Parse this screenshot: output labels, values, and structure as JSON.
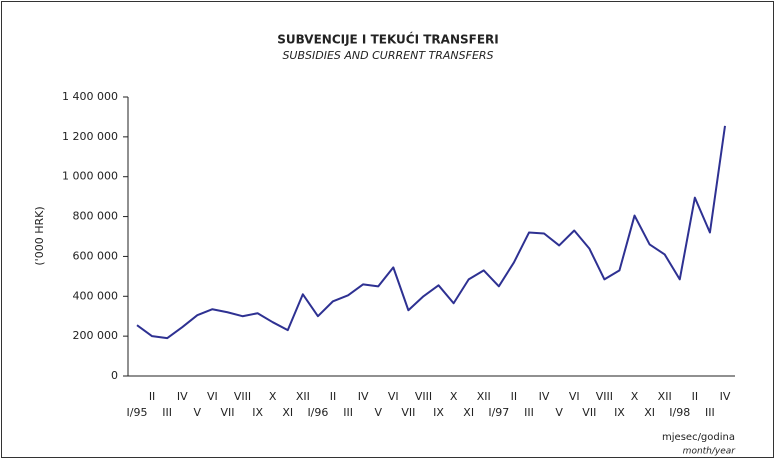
{
  "chart_data": {
    "type": "line",
    "title": "SUBVENCIJE I TEKUĆI TRANSFERI",
    "subtitle": "SUBSIDIES AND CURRENT TRANSFERS",
    "y_label": "('000 HRK)",
    "x_label": "mjesec/godina",
    "x_label_sub": "month/year",
    "categories": [
      "I/95",
      "II",
      "III",
      "IV",
      "V",
      "VI",
      "VII",
      "VIII",
      "IX",
      "X",
      "XI",
      "XII",
      "I/96",
      "II",
      "III",
      "IV",
      "V",
      "VI",
      "VII",
      "VIII",
      "IX",
      "X",
      "XI",
      "XII",
      "I/97",
      "II",
      "III",
      "IV",
      "V",
      "VI",
      "VII",
      "VIII",
      "IX",
      "X",
      "XI",
      "XII",
      "I/98",
      "II",
      "III",
      "IV"
    ],
    "series": [
      {
        "name": "Subvencije i tekući transferi",
        "color": "#2e3192",
        "values": [
          255000,
          200000,
          190000,
          245000,
          305000,
          335000,
          320000,
          300000,
          315000,
          270000,
          230000,
          410000,
          300000,
          375000,
          405000,
          460000,
          450000,
          545000,
          330000,
          400000,
          455000,
          365000,
          485000,
          530000,
          450000,
          570000,
          720000,
          715000,
          655000,
          730000,
          640000,
          485000,
          530000,
          805000,
          660000,
          610000,
          485000,
          895000,
          720000,
          1255000
        ]
      }
    ],
    "ylim": [
      0,
      1400000
    ],
    "yticks": [
      0,
      {
        "value": 200000,
        "label": "200 000"
      },
      {
        "value": 400000,
        "label": "400 000"
      },
      {
        "value": 600000,
        "label": "600 000"
      },
      {
        "value": 800000,
        "label": "800 000"
      },
      {
        "value": 1000000,
        "label": "1 000 000"
      },
      {
        "value": 1200000,
        "label": "1 200 000"
      },
      {
        "value": 1400000,
        "label": "1 400 000"
      }
    ]
  }
}
